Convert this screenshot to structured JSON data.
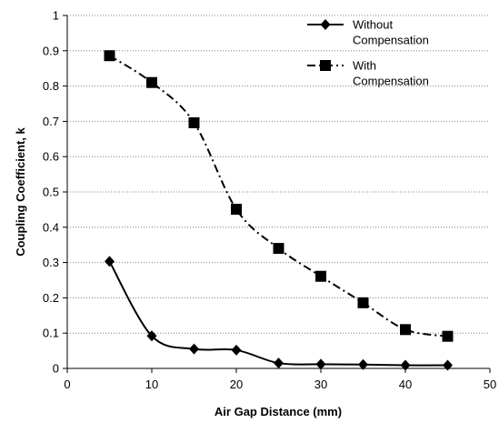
{
  "chart_data": {
    "type": "line",
    "title": "",
    "xlabel": "Air Gap Distance (mm)",
    "ylabel": "Coupling Coefficient, k",
    "xlim": [
      0,
      50
    ],
    "ylim": [
      0,
      1
    ],
    "xticks": [
      0,
      10,
      20,
      30,
      40,
      50
    ],
    "xtick_labels": [
      "0",
      "10",
      "20",
      "30",
      "40",
      "50"
    ],
    "yticks": [
      0,
      0.1,
      0.2,
      0.3,
      0.4,
      0.5,
      0.6,
      0.7,
      0.8,
      0.9,
      1
    ],
    "ytick_labels": [
      "0",
      "0.1",
      "0.2",
      "0.3",
      "0.4",
      "0.5",
      "0.6",
      "0.7",
      "0.8",
      "0.9",
      "1"
    ],
    "grid": "horizontal dotted",
    "legend_position": "top-right",
    "series": [
      {
        "name": "Without Compensation",
        "legend_lines": [
          "Without",
          "Compensation"
        ],
        "marker": "diamond",
        "line_style": "solid",
        "color": "#000000",
        "x": [
          5,
          10,
          15,
          20,
          25,
          30,
          35,
          40,
          45
        ],
        "y": [
          0.303,
          0.092,
          0.055,
          0.052,
          0.015,
          0.012,
          0.011,
          0.009,
          0.009
        ]
      },
      {
        "name": "With Compensation",
        "legend_lines": [
          "With",
          "Compensation"
        ],
        "marker": "square",
        "line_style": "dash-dot",
        "color": "#000000",
        "x": [
          5,
          10,
          15,
          20,
          25,
          30,
          35,
          40,
          45
        ],
        "y": [
          0.886,
          0.81,
          0.696,
          0.451,
          0.34,
          0.261,
          0.186,
          0.11,
          0.091
        ]
      }
    ]
  }
}
